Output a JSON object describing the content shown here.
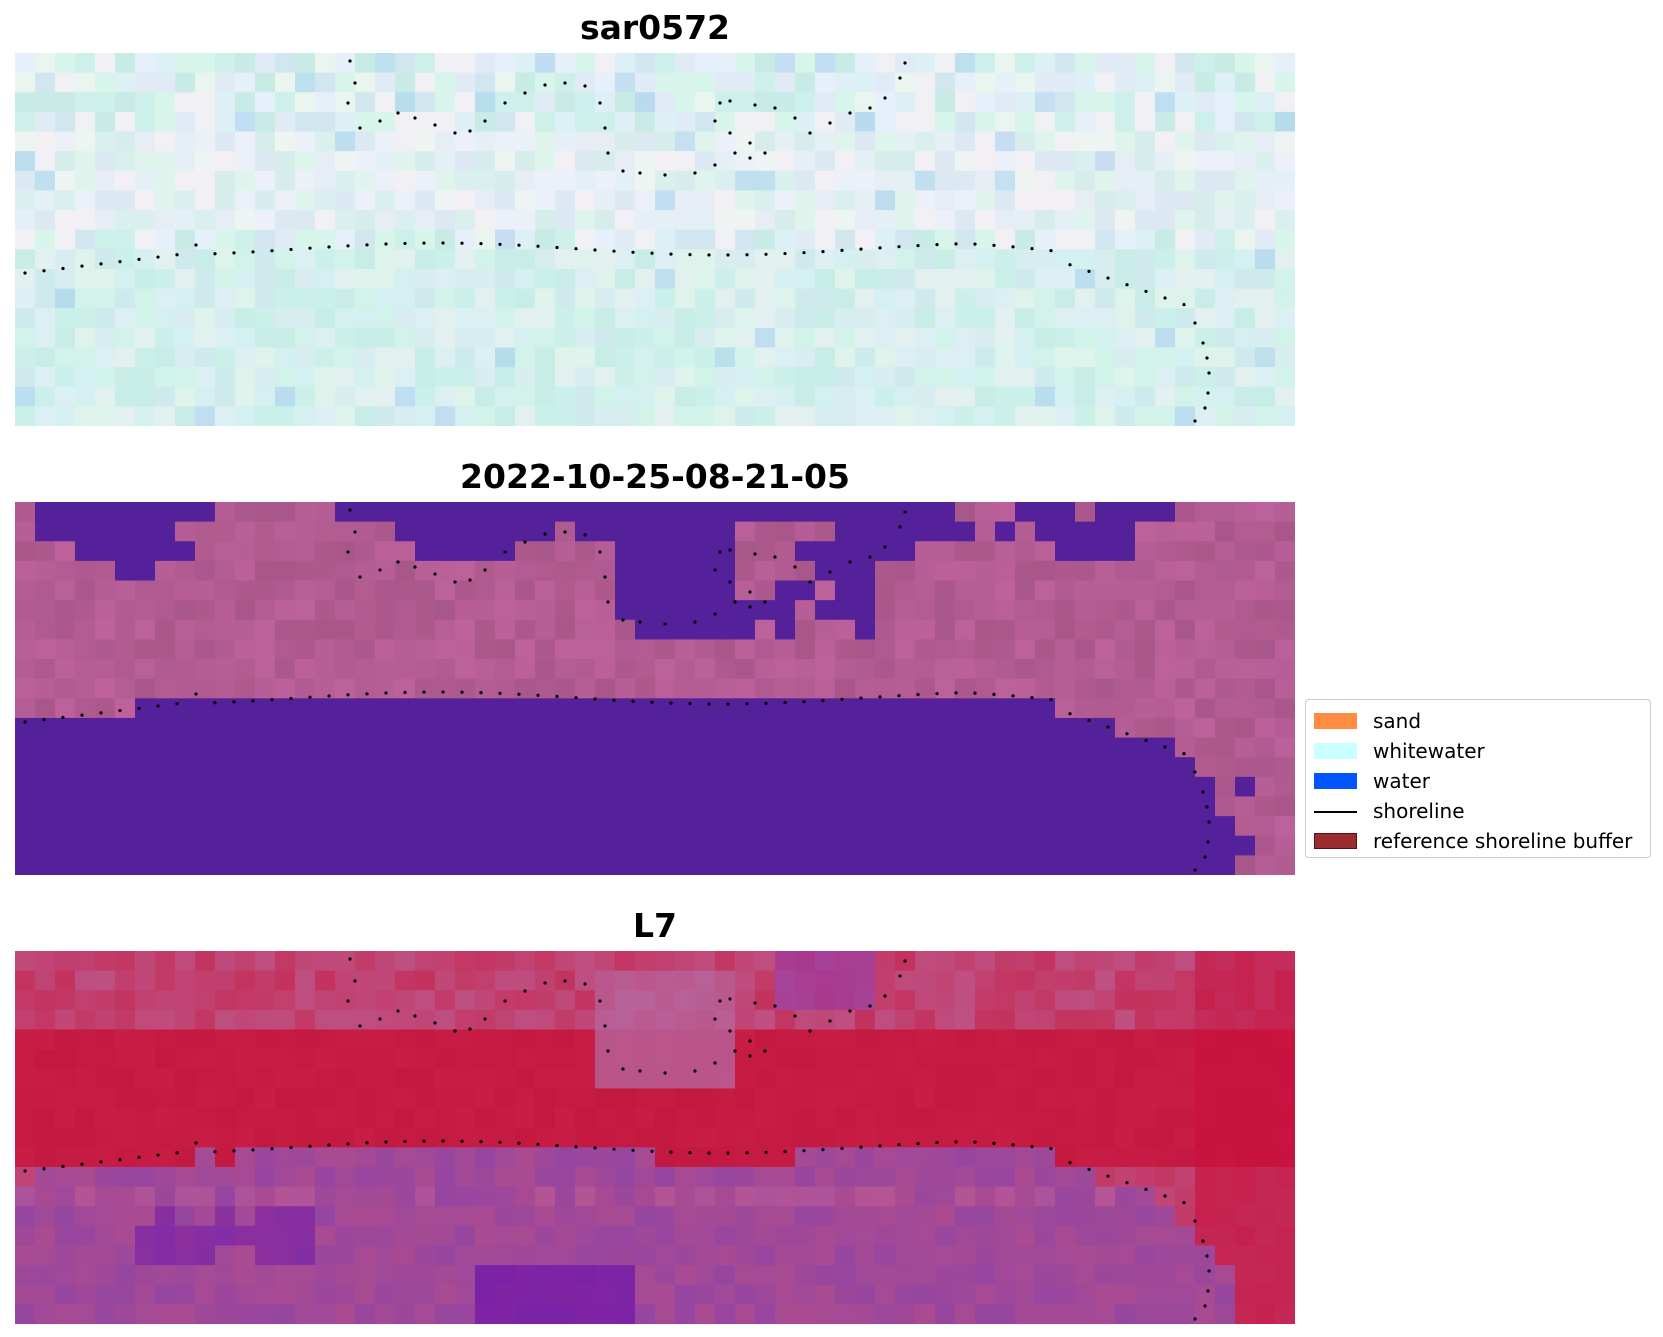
{
  "panels": [
    {
      "title": "sar0572",
      "style": "sar"
    },
    {
      "title": "2022-10-25-08-21-05",
      "style": "class"
    },
    {
      "title": "L7",
      "style": "rgb"
    }
  ],
  "legend": {
    "items": [
      {
        "label": "sand",
        "kind": "patch",
        "color": "#ff8c42",
        "edge": "#ff8c42"
      },
      {
        "label": "whitewater",
        "kind": "patch",
        "color": "#c8ffff",
        "edge": "#c8ffff"
      },
      {
        "label": "water",
        "kind": "patch",
        "color": "#0055ff",
        "edge": "#0055ff"
      },
      {
        "label": "shoreline",
        "kind": "line",
        "color": "#000000",
        "edge": "#000000"
      },
      {
        "label": "reference shoreline buffer",
        "kind": "patch",
        "color": "#9b2d30",
        "edge": "#5a1010"
      }
    ]
  },
  "colors": {
    "water_class": "#54219a",
    "land_class": "#b35c93",
    "shoreline_dots": "#000000"
  }
}
